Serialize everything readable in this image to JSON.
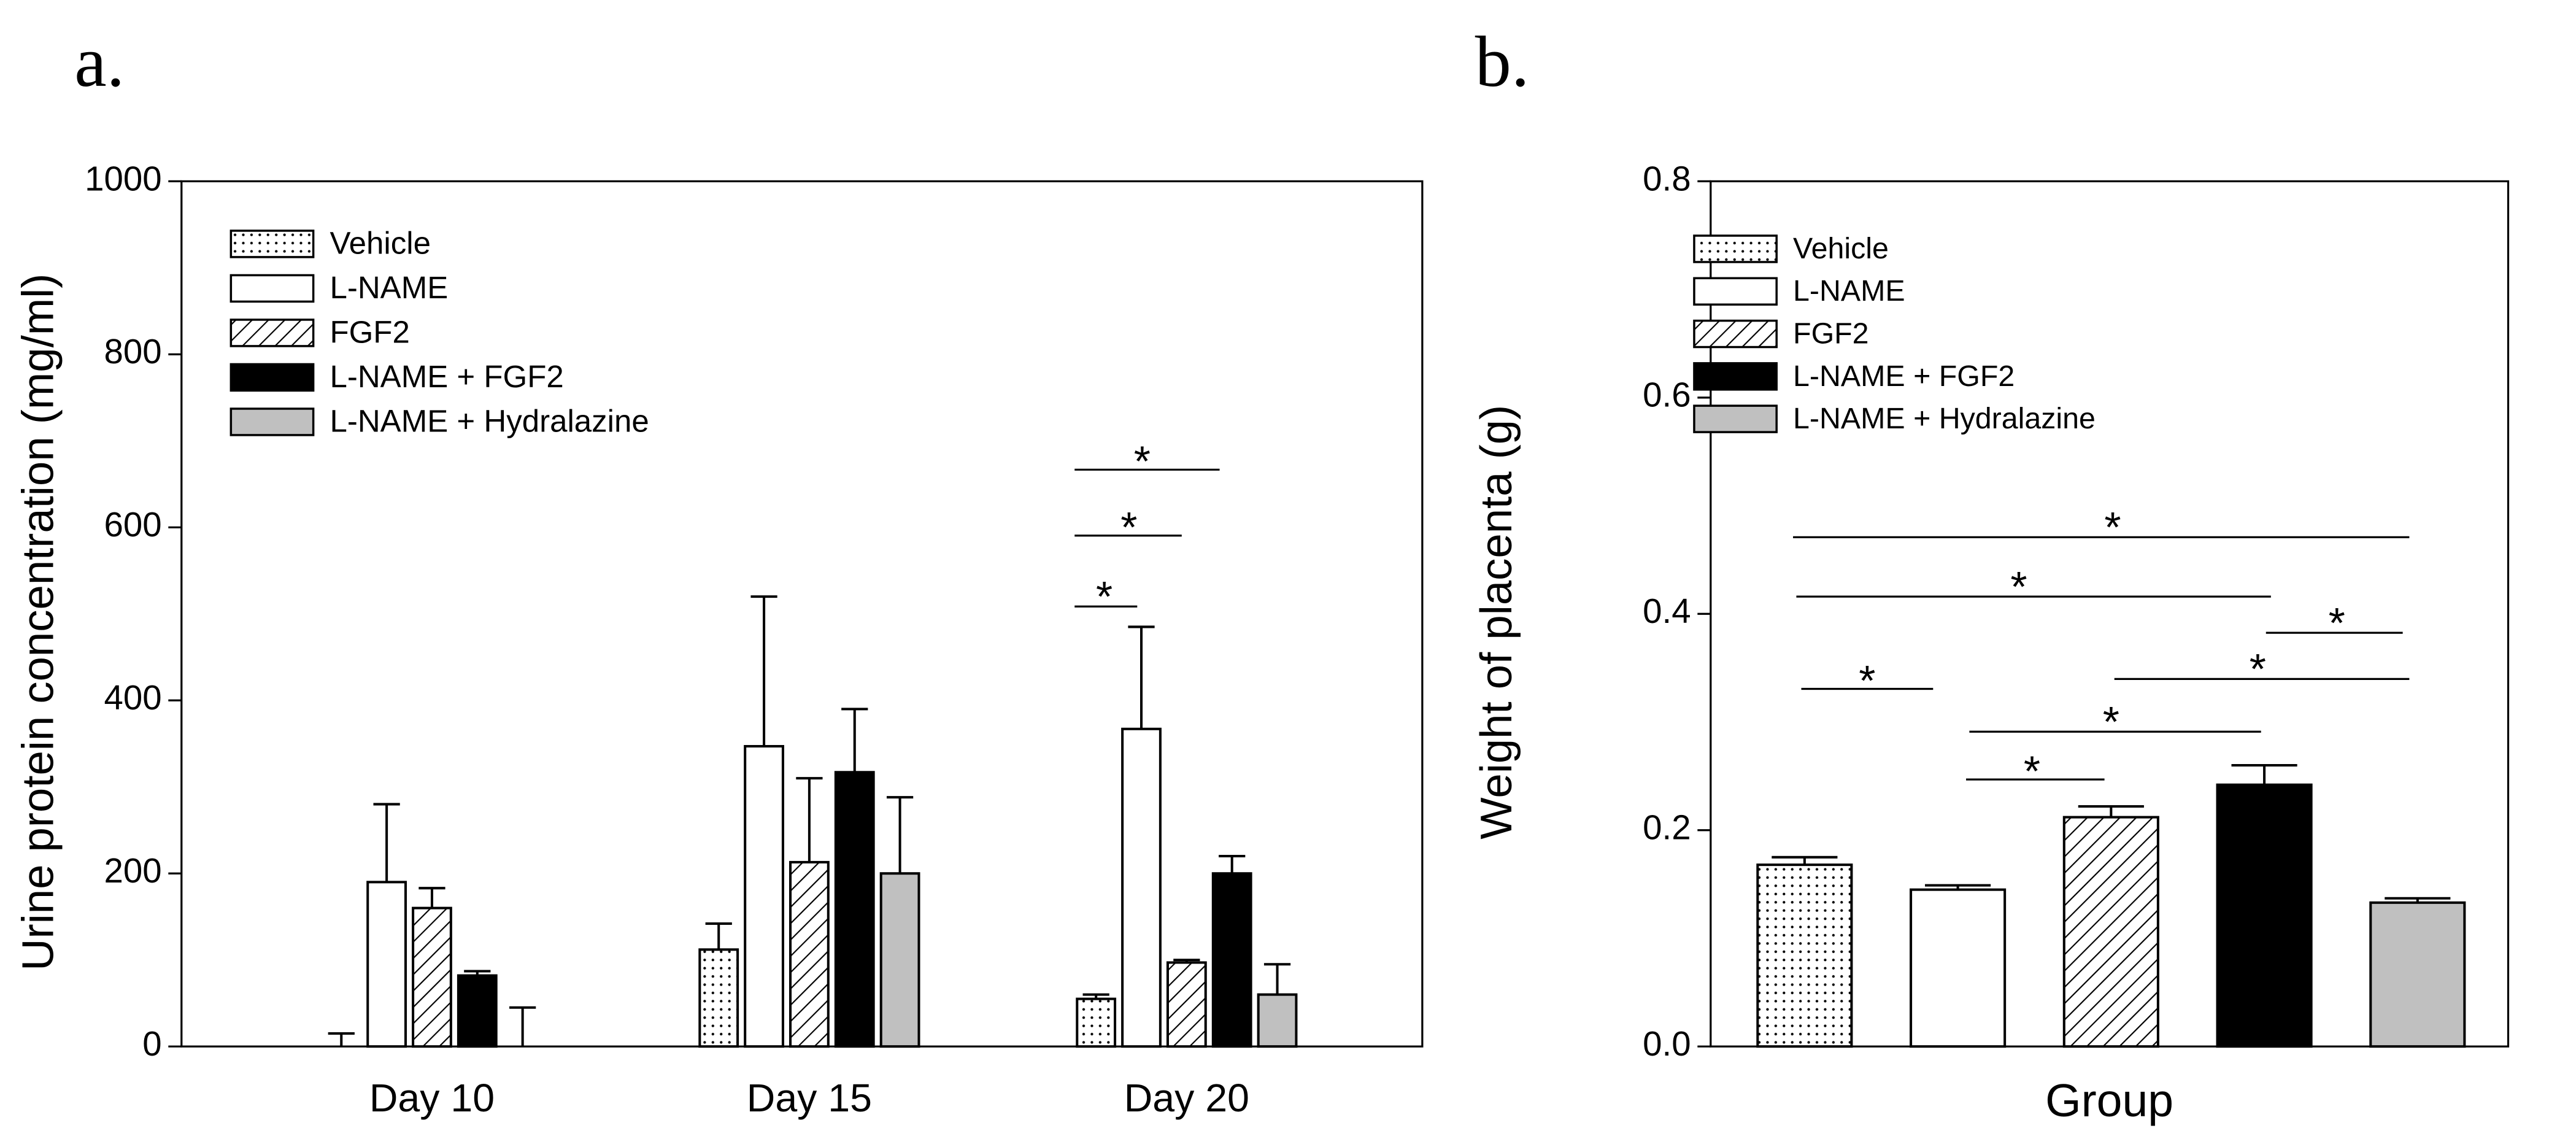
{
  "chart_data": [
    {
      "type": "bar",
      "panel": "a.",
      "ylabel": "Urine protein concentration (mg/ml)",
      "categories": [
        "Day 10",
        "Day 15",
        "Day 20"
      ],
      "ylim": [
        0,
        1000
      ],
      "yticks": [
        0,
        200,
        400,
        600,
        800,
        1000
      ],
      "legend": "upper left",
      "series": [
        {
          "name": "Vehicle",
          "color": "#ffffff",
          "pattern": "dots",
          "values": [
            0,
            112,
            55
          ],
          "errors": [
            15,
            30,
            5
          ]
        },
        {
          "name": "L-NAME",
          "color": "#ffffff",
          "pattern": "none",
          "values": [
            190,
            347,
            367
          ],
          "errors": [
            90,
            173,
            118
          ]
        },
        {
          "name": "FGF2",
          "color": "#ffffff",
          "pattern": "hatch",
          "values": [
            160,
            213,
            97
          ],
          "errors": [
            23,
            97,
            3
          ]
        },
        {
          "name": "L-NAME + FGF2",
          "color": "#000000",
          "pattern": "none",
          "values": [
            82,
            317,
            200
          ],
          "errors": [
            5,
            73,
            20
          ]
        },
        {
          "name": "L-NAME + Hydralazine",
          "color": "#c0c0c0",
          "pattern": "none",
          "values": [
            0,
            200,
            60
          ],
          "errors": [
            45,
            88,
            35
          ]
        }
      ],
      "annotations": [
        "*",
        "*",
        "*"
      ]
    },
    {
      "type": "bar",
      "panel": "b.",
      "ylabel": "Weight of placenta (g)",
      "xlabel": "Group",
      "categories": [
        null
      ],
      "ylim": [
        0,
        0.8
      ],
      "yticks": [
        {
          "value": 0,
          "label": "0.0"
        },
        0.2,
        0.4,
        0.6,
        0.8
      ],
      "legend": "upper left",
      "series": [
        {
          "name": "Vehicle",
          "color": "#ffffff",
          "pattern": "dots",
          "values": [
            0.168
          ],
          "errors": [
            0.007
          ]
        },
        {
          "name": "L-NAME",
          "color": "#ffffff",
          "pattern": "none",
          "values": [
            0.145
          ],
          "errors": [
            0.004
          ]
        },
        {
          "name": "FGF2",
          "color": "#ffffff",
          "pattern": "hatch",
          "values": [
            0.212
          ],
          "errors": [
            0.01
          ]
        },
        {
          "name": "L-NAME + FGF2",
          "color": "#000000",
          "pattern": "none",
          "values": [
            0.242
          ],
          "errors": [
            0.018
          ]
        },
        {
          "name": "L-NAME + Hydralazine",
          "color": "#c0c0c0",
          "pattern": "none",
          "values": [
            0.133
          ],
          "errors": [
            0.004
          ]
        }
      ],
      "annotations": [
        "*",
        "*",
        "*",
        "*",
        "*",
        "*",
        "*"
      ]
    }
  ]
}
